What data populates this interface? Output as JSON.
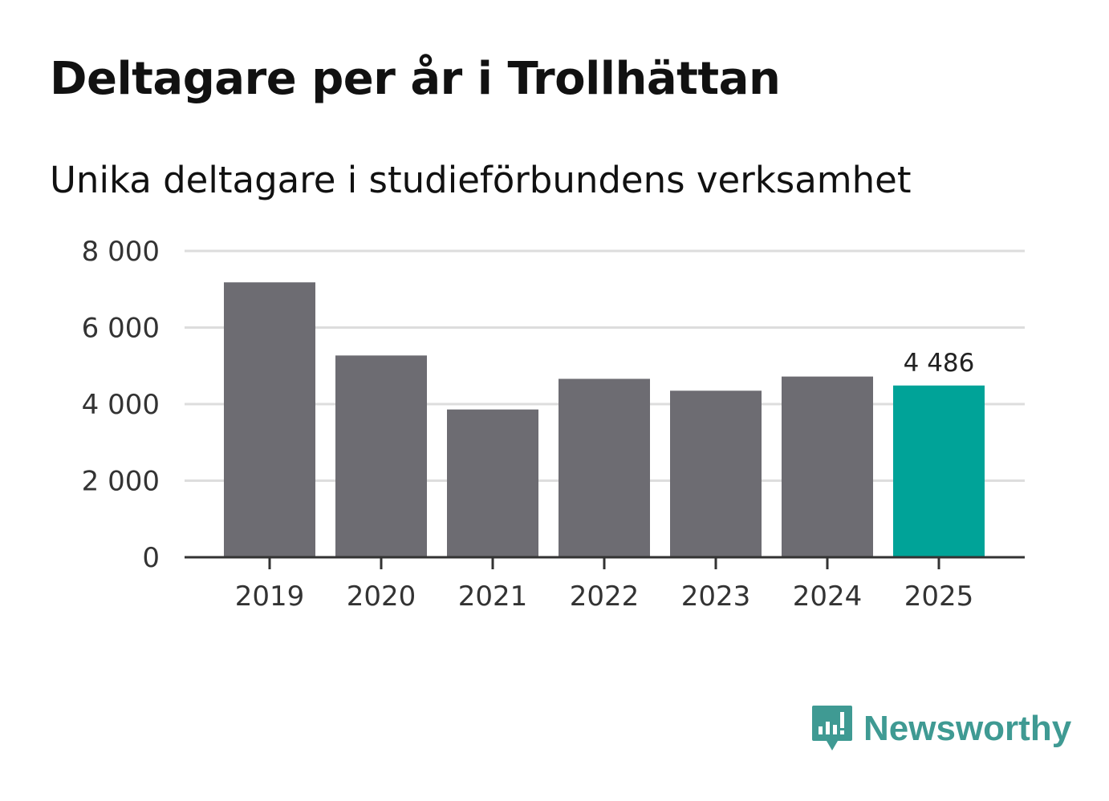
{
  "header": {
    "title": "Deltagare per år i Trollhättan",
    "subtitle": "Unika deltagare i studieförbundens verksamhet"
  },
  "chart_data": {
    "type": "bar",
    "title": "Deltagare per år i Trollhättan",
    "subtitle": "Unika deltagare i studieförbundens verksamhet",
    "xlabel": "",
    "ylabel": "",
    "categories": [
      "2019",
      "2020",
      "2021",
      "2022",
      "2023",
      "2024",
      "2025"
    ],
    "values": [
      7180,
      5270,
      3860,
      4660,
      4350,
      4720,
      4486
    ],
    "highlight_index": 6,
    "data_labels": [
      {
        "index": 6,
        "text": "4 486"
      }
    ],
    "ylim": [
      0,
      8000
    ],
    "yticks": [
      0,
      2000,
      4000,
      6000,
      8000
    ],
    "ytick_labels": [
      "0",
      "2 000",
      "4 000",
      "6 000",
      "8 000"
    ],
    "grid": true,
    "colors": {
      "bar": "#6d6c72",
      "highlight": "#00a398",
      "grid": "#dddddd",
      "axis": "#333333"
    }
  },
  "logo": {
    "text": "Newsworthy",
    "icon": "newsworthy-speech-bubble-chart-icon",
    "color": "#3f9a93"
  }
}
